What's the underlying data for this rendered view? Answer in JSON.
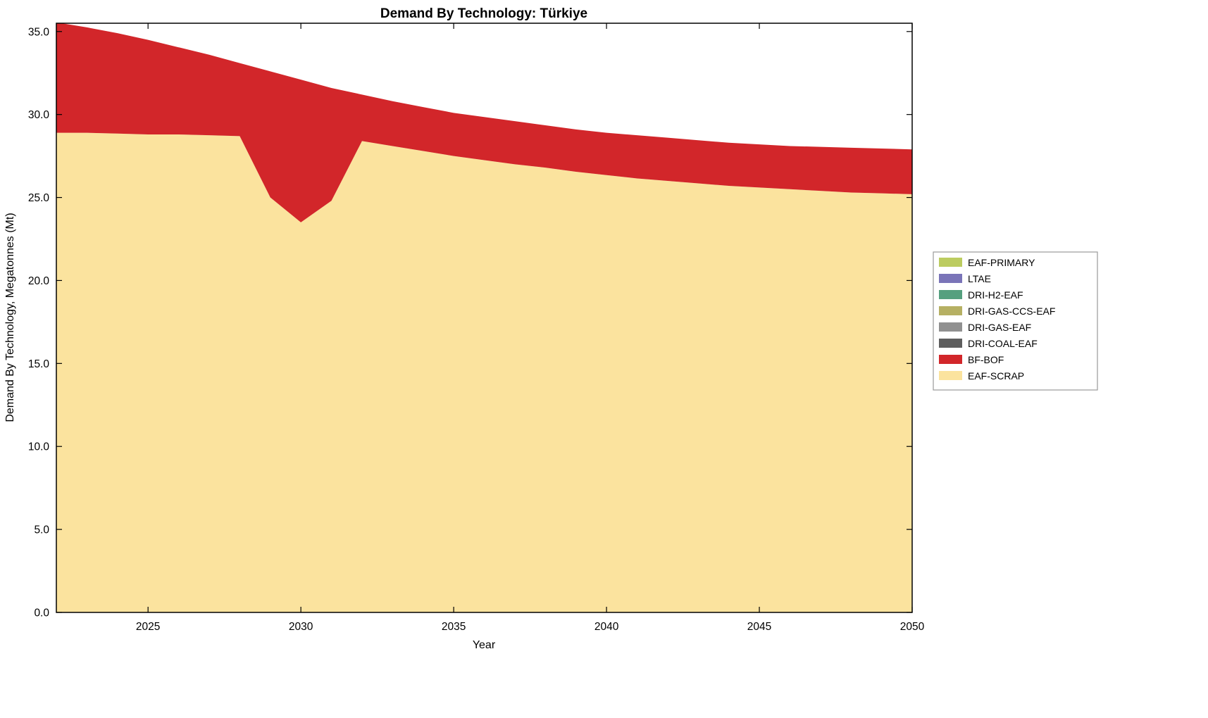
{
  "chart_data": {
    "type": "area",
    "stacked": true,
    "title": "Demand By Technology: Türkiye",
    "xlabel": "Year",
    "ylabel": "Demand By Technology, Megatonnes (Mt)",
    "xlim": [
      2022,
      2050
    ],
    "ylim": [
      0,
      35.5
    ],
    "grid": false,
    "xticks": [
      2025,
      2030,
      2035,
      2040,
      2045,
      2050
    ],
    "ytick_labels": [
      "0.0",
      "5.0",
      "10.0",
      "15.0",
      "20.0",
      "25.0",
      "30.0",
      "35.0"
    ],
    "ytick_values": [
      0,
      5,
      10,
      15,
      20,
      25,
      30,
      35
    ],
    "x": [
      2022,
      2023,
      2024,
      2025,
      2026,
      2027,
      2028,
      2029,
      2030,
      2031,
      2032,
      2033,
      2034,
      2035,
      2036,
      2037,
      2038,
      2039,
      2040,
      2041,
      2042,
      2043,
      2044,
      2045,
      2046,
      2047,
      2048,
      2049,
      2050
    ],
    "series": [
      {
        "name": "EAF-SCRAP",
        "color": "#FBE39E",
        "values": [
          28.9,
          28.9,
          28.85,
          28.8,
          28.8,
          28.75,
          28.7,
          25.0,
          23.5,
          24.8,
          28.4,
          28.1,
          27.8,
          27.5,
          27.25,
          27.0,
          26.8,
          26.55,
          26.35,
          26.15,
          26.0,
          25.85,
          25.7,
          25.6,
          25.5,
          25.4,
          25.3,
          25.25,
          25.2
        ]
      },
      {
        "name": "BF-BOF",
        "color": "#D2262A",
        "values": [
          6.65,
          6.35,
          6.05,
          5.7,
          5.25,
          4.85,
          4.4,
          7.6,
          8.6,
          6.8,
          2.8,
          2.7,
          2.65,
          2.6,
          2.6,
          2.6,
          2.55,
          2.55,
          2.55,
          2.6,
          2.6,
          2.6,
          2.6,
          2.6,
          2.6,
          2.65,
          2.7,
          2.7,
          2.7
        ]
      }
    ],
    "legend": {
      "position": "right",
      "entries": [
        {
          "label": "EAF-PRIMARY",
          "color": "#BCCC60"
        },
        {
          "label": "LTAE",
          "color": "#7A74B8"
        },
        {
          "label": "DRI-H2-EAF",
          "color": "#55A07F"
        },
        {
          "label": "DRI-GAS-CCS-EAF",
          "color": "#B6B063"
        },
        {
          "label": "DRI-GAS-EAF",
          "color": "#909090"
        },
        {
          "label": "DRI-COAL-EAF",
          "color": "#5E5E5E"
        },
        {
          "label": "BF-BOF",
          "color": "#D2262A"
        },
        {
          "label": "EAF-SCRAP",
          "color": "#FBE39E"
        }
      ]
    }
  }
}
